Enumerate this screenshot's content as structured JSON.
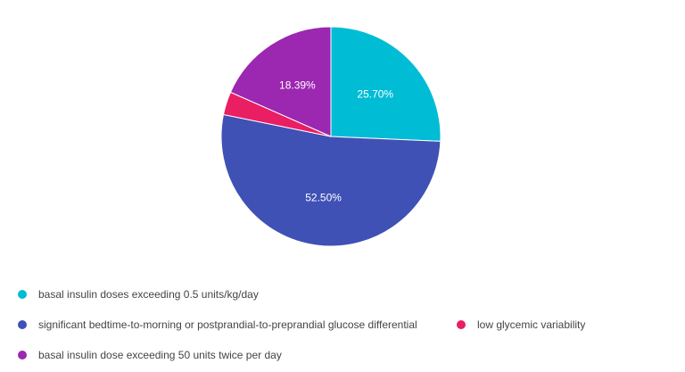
{
  "chart_data": {
    "type": "pie",
    "title": "",
    "legend_position": "bottom",
    "slices": [
      {
        "label": "basal insulin doses exceeding 0.5 units/kg/day",
        "value": 25.7,
        "value_label": "25.70%",
        "color": "#00bcd4"
      },
      {
        "label": "significant bedtime-to-morning or postprandial-to-preprandial glucose differential",
        "value": 52.5,
        "value_label": "52.50%",
        "color": "#3f51b5"
      },
      {
        "label": "low glycemic variability",
        "value": 3.41,
        "value_label": "",
        "color": "#e91e63"
      },
      {
        "label": "basal insulin dose exceeding 50 units twice per day",
        "value": 18.39,
        "value_label": "18.39%",
        "color": "#9c27b0"
      }
    ]
  }
}
